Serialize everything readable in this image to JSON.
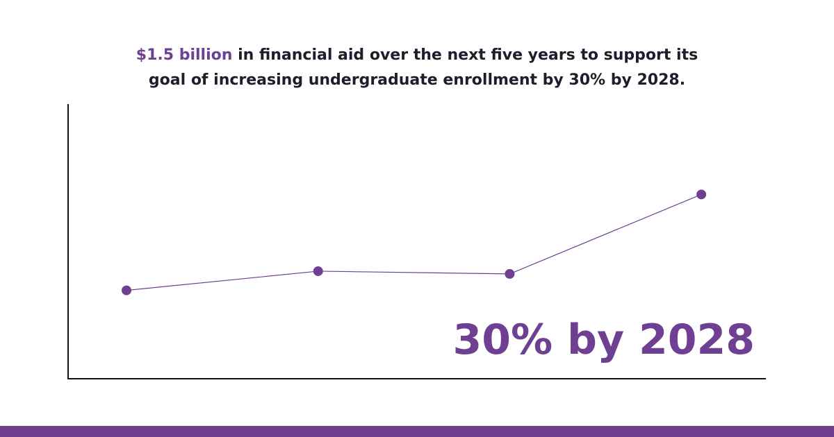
{
  "chart_data": {
    "type": "line",
    "title_highlight": "$1.5 billion",
    "title_line_1": " in financial aid over the next five years to support its",
    "title_line_2": "goal of increasing undergraduate enrollment by 30% by 2028.",
    "annotation": "30% by 2028",
    "categories": [
      null,
      null,
      null,
      null
    ],
    "series": [
      {
        "color": "#6f3f91",
        "values": [
          32,
          39,
          38,
          67
        ]
      }
    ],
    "ylim": [
      0,
      100
    ]
  }
}
